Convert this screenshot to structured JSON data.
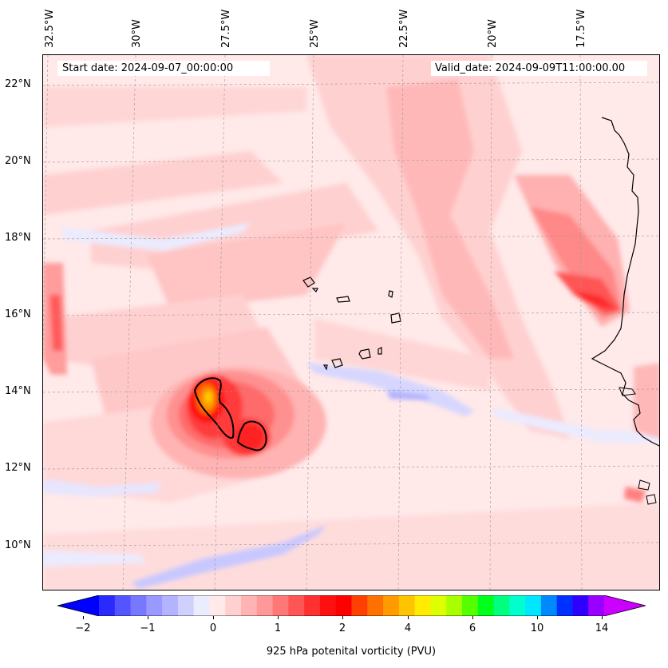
{
  "map": {
    "longitude_labels": [
      "32.5°W",
      "30°W",
      "27.5°W",
      "25°W",
      "22.5°W",
      "20°W",
      "17.5°W"
    ],
    "latitude_labels": [
      "22°N",
      "20°N",
      "18°N",
      "16°N",
      "14°N",
      "12°N",
      "10°N"
    ],
    "start_date": "Start date: 2024-09-07_00:00:00",
    "valid_date": "Valid_date: 2024-09-09T11:00:00.00"
  },
  "colorbar": {
    "label": "925 hPa potenital vorticity (PVU)",
    "tick_labels": [
      "−2",
      "−1",
      "0",
      "1",
      "2",
      "4",
      "6",
      "10",
      "14"
    ],
    "colors": [
      "#0000ff",
      "#2a2aff",
      "#5555ff",
      "#7777ff",
      "#9999ff",
      "#b3b3ff",
      "#d0d0ff",
      "#ececff",
      "#ffe9e9",
      "#ffd0d0",
      "#ffb3b3",
      "#ff9999",
      "#ff7777",
      "#ff5555",
      "#ff3030",
      "#ff1010",
      "#ff0000",
      "#ff4000",
      "#ff7000",
      "#ff9a00",
      "#ffc400",
      "#ffec00",
      "#ddff00",
      "#a8ff00",
      "#55ff00",
      "#00ff1a",
      "#00ff80",
      "#00ffcc",
      "#00e6ff",
      "#0088ff",
      "#0030ff",
      "#3000ff",
      "#9a00ff",
      "#cc00ff"
    ]
  }
}
